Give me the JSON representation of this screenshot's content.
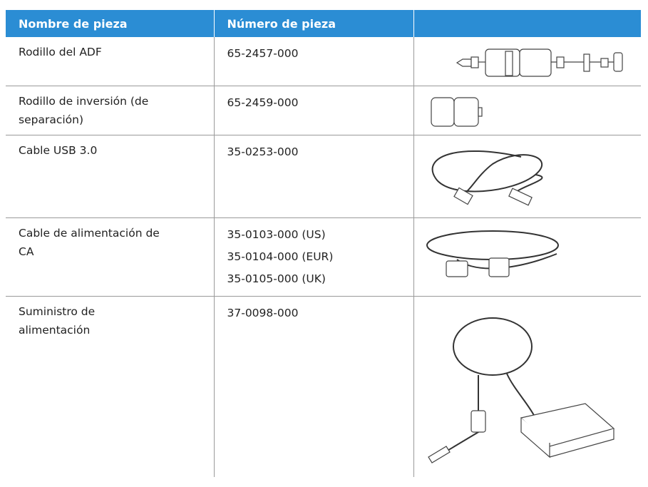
{
  "table": {
    "header": [
      "Nombre de pieza",
      "Número de pieza",
      ""
    ],
    "rows": [
      {
        "name": [
          "Rodillo del ADF"
        ],
        "numbers": [
          "65-2457-000"
        ]
      },
      {
        "name": [
          "Rodillo de inversión (de",
          "separación)"
        ],
        "numbers": [
          "65-2459-000"
        ]
      },
      {
        "name": [
          "Cable USB 3.0"
        ],
        "numbers": [
          "35-0253-000"
        ]
      },
      {
        "name": [
          "Cable de alimentación de",
          "CA"
        ],
        "numbers": [
          "35-0103-000 (US)",
          "35-0104-000 (EUR)",
          "35-0105-000 (UK)"
        ]
      },
      {
        "name": [
          "Suministro de",
          "alimentación"
        ],
        "numbers": [
          "37-0098-000"
        ]
      }
    ]
  }
}
